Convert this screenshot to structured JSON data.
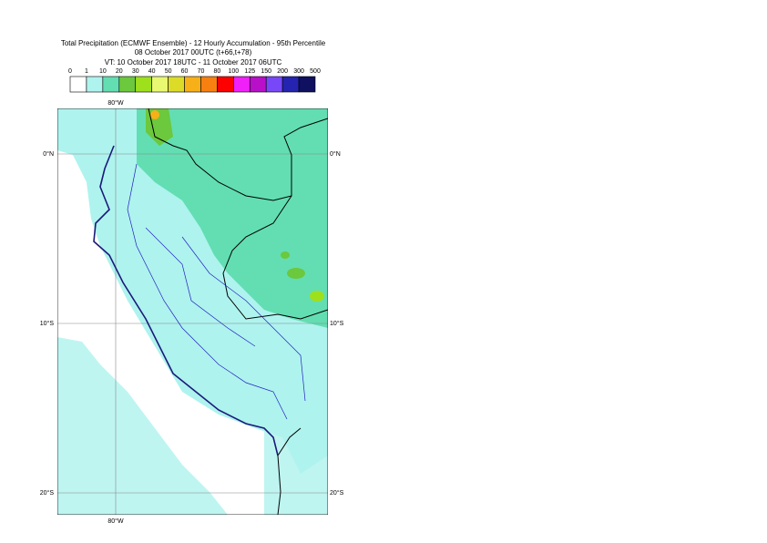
{
  "title": {
    "line1": "Total Precipitation (ECMWF Ensemble) - 12 Hourly Accumulation - 95th Percentile",
    "line2": "08 October 2017 00UTC (t+66,t+78)",
    "line3": "VT: 10 October 2017 18UTC - 11 October 2017 06UTC"
  },
  "legend": {
    "labels": [
      "0",
      "1",
      "10",
      "20",
      "30",
      "40",
      "50",
      "60",
      "70",
      "80",
      "100",
      "125",
      "150",
      "200",
      "300",
      "500"
    ],
    "colors": [
      "#ffffff",
      "#aef3ee",
      "#62deb2",
      "#6cc83c",
      "#9ee01c",
      "#e8f870",
      "#dcdc28",
      "#f8b018",
      "#f88010",
      "#ff0000",
      "#f020f8",
      "#b810c8",
      "#7848f8",
      "#2424b0",
      "#101060"
    ]
  },
  "map": {
    "lon_labels": [
      "80°W"
    ],
    "lat_labels": [
      "0°N",
      "10°S",
      "20°S"
    ]
  }
}
